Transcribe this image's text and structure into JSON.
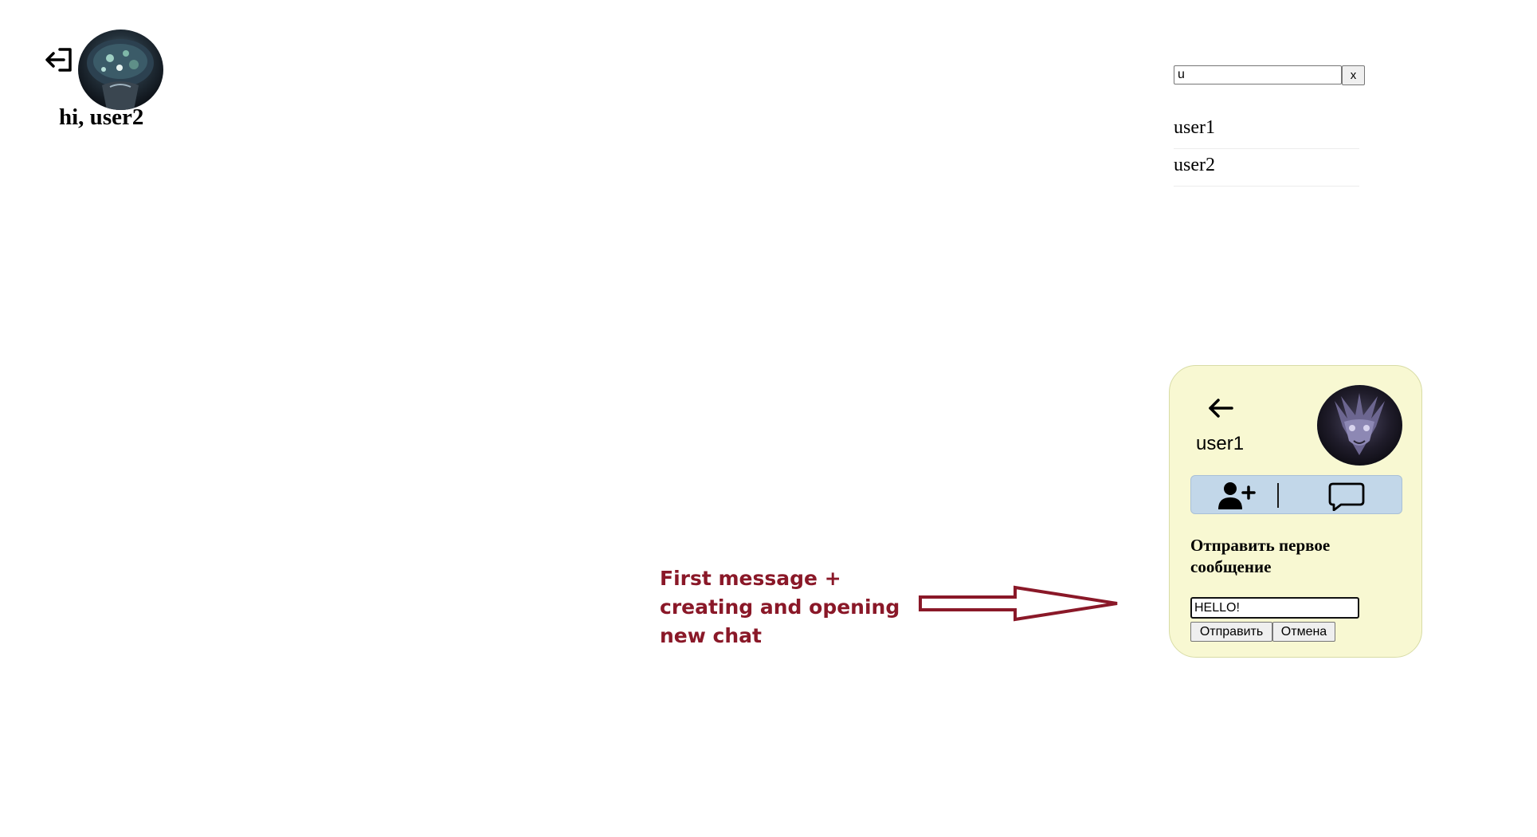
{
  "header": {
    "greeting": "hi, user2",
    "logout_icon": "logout-icon",
    "avatar_icon": "user-avatar"
  },
  "search": {
    "value": "u",
    "clear_label": "x",
    "results": [
      "user1",
      "user2"
    ]
  },
  "profile_card": {
    "username": "user1",
    "back_icon": "arrow-left-icon",
    "add_friend_icon": "user-plus-icon",
    "message_icon": "chat-bubble-icon",
    "first_message_title": "Отправить первое сообщение",
    "message_input_value": "HELLO!",
    "send_label": "Отправить",
    "cancel_label": "Отмена",
    "background_color": "#f8f8d2",
    "action_bar_color": "#c2d7e9"
  },
  "annotation": {
    "lines": [
      "First message +",
      "creating and opening",
      "new chat"
    ],
    "color": "#8a1828"
  }
}
